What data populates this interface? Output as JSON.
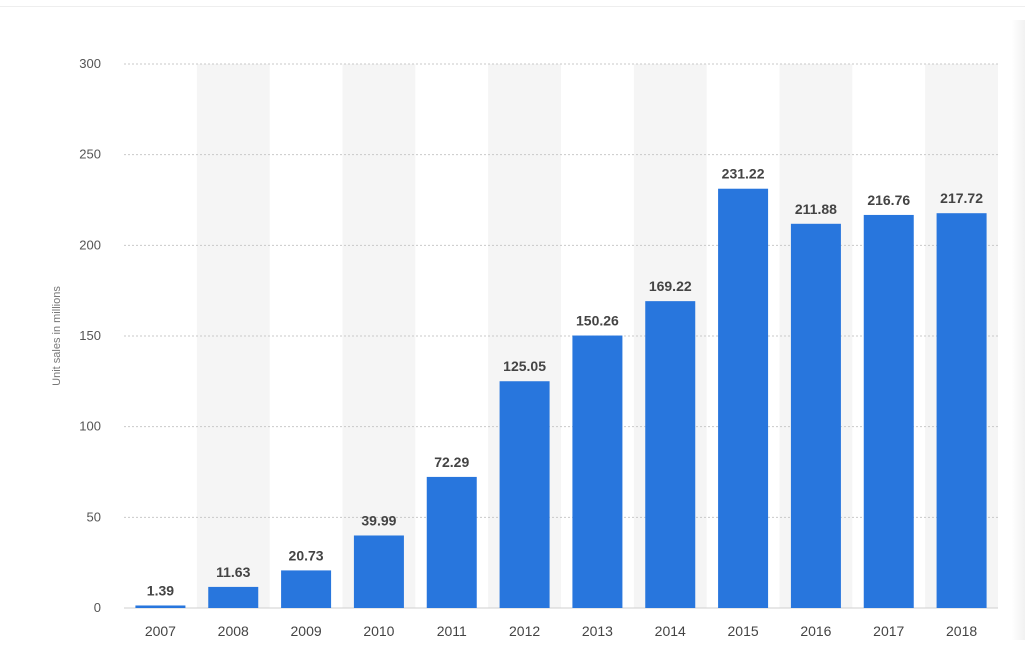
{
  "chart_data": {
    "type": "bar",
    "title": "",
    "xlabel": "",
    "ylabel": "Unit sales in millions",
    "categories": [
      "2007",
      "2008",
      "2009",
      "2010",
      "2011",
      "2012",
      "2013",
      "2014",
      "2015",
      "2016",
      "2017",
      "2018"
    ],
    "values": [
      1.39,
      11.63,
      20.73,
      39.99,
      72.29,
      125.05,
      150.26,
      169.22,
      231.22,
      211.88,
      216.76,
      217.72
    ],
    "data_labels": [
      "1.39",
      "11.63",
      "20.73",
      "39.99",
      "72.29",
      "125.05",
      "150.26",
      "169.22",
      "231.22",
      "211.88",
      "216.76",
      "217.72"
    ],
    "ylim": [
      0,
      300
    ],
    "yticks": [
      0,
      50,
      100,
      150,
      200,
      250,
      300
    ],
    "grid": true,
    "legend": "none",
    "colors": {
      "bar": "#2876dd",
      "band": "#f5f5f5",
      "grid": "#c9c9c9"
    }
  }
}
